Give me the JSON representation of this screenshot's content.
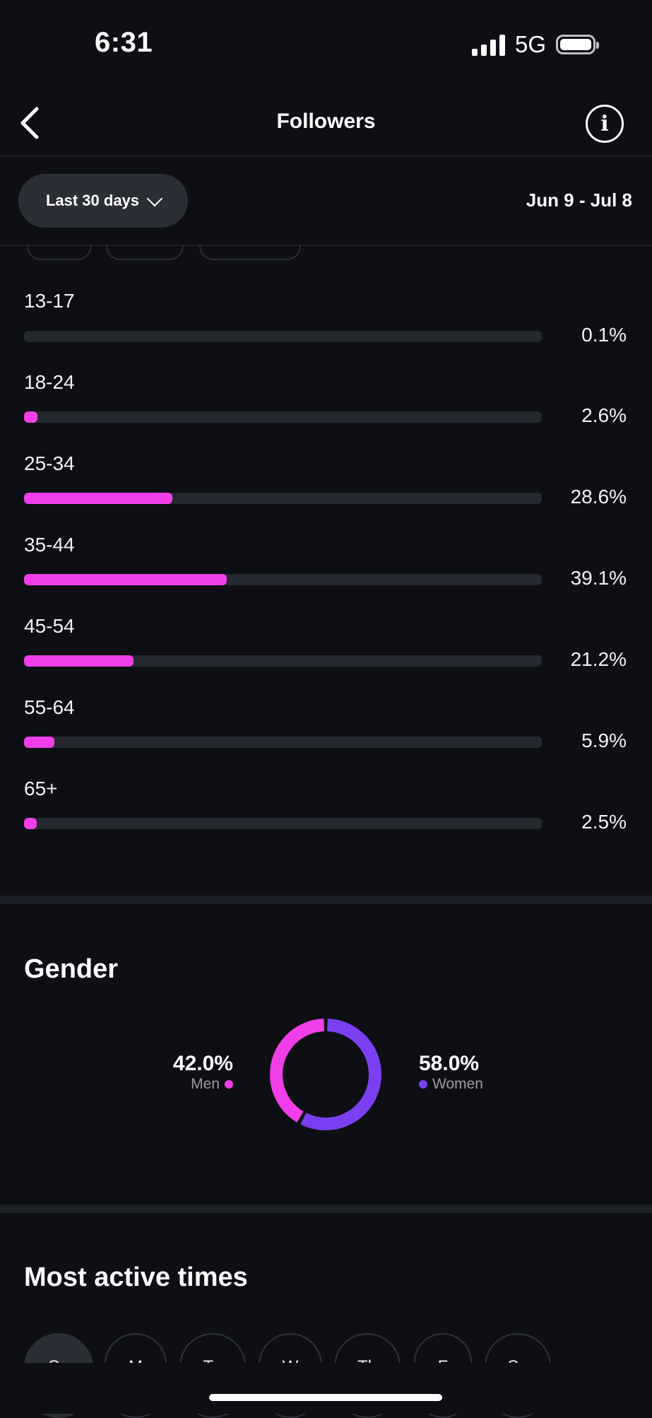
{
  "status_bar": {
    "time": "6:31",
    "network": "5G"
  },
  "header": {
    "title": "Followers",
    "info_symbol": "i"
  },
  "filter": {
    "range_label": "Last 30 days",
    "date_range": "Jun 9 - Jul 8"
  },
  "age_ranges": {
    "accent_color": "#f03ee8",
    "items": [
      {
        "label": "13-17",
        "value": 0.1,
        "display": "0.1%"
      },
      {
        "label": "18-24",
        "value": 2.6,
        "display": "2.6%"
      },
      {
        "label": "25-34",
        "value": 28.6,
        "display": "28.6%"
      },
      {
        "label": "35-44",
        "value": 39.1,
        "display": "39.1%"
      },
      {
        "label": "45-54",
        "value": 21.2,
        "display": "21.2%"
      },
      {
        "label": "55-64",
        "value": 5.9,
        "display": "5.9%"
      },
      {
        "label": "65+",
        "value": 2.5,
        "display": "2.5%"
      }
    ]
  },
  "gender": {
    "title": "Gender",
    "men": {
      "value": "42.0%",
      "label": "Men",
      "share": 42.0,
      "color": "#f03ee8"
    },
    "women": {
      "value": "58.0%",
      "label": "Women",
      "share": 58.0,
      "color": "#7b3ff2"
    }
  },
  "most_active": {
    "title": "Most active times",
    "days": [
      "Su",
      "M",
      "Tu",
      "W",
      "Th",
      "F",
      "Sa"
    ],
    "selected": "Su"
  }
}
